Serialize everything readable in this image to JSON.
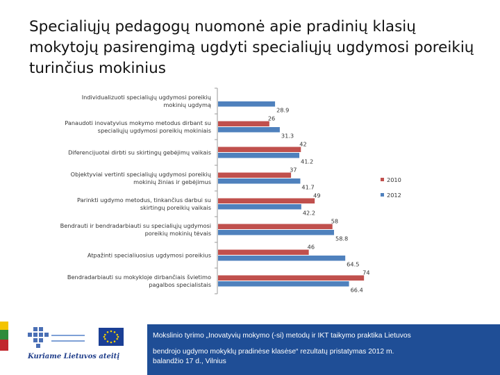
{
  "slide": {
    "title": "Specialiųjų pedagogų nuomonė apie pradinių klasių mokytojų pasirengimą ugdyti specialiųjų ugdymosi poreikių turinčius mokinius",
    "footer": {
      "logo_caption": "Kuriame Lietuvos ateitį",
      "info_line1": "Mokslinio tyrimo „Inovatyvių mokymo (-si) metodų ir IKT taikymo praktika Lietuvos",
      "info_line2": "bendrojo ugdymo mokyklų pradinėse klasėse“ rezultatų pristatymas 2012 m.",
      "info_line3": "balandžio 17 d., Vilnius"
    }
  },
  "chart_data": {
    "type": "bar",
    "orientation": "horizontal",
    "categories": [
      [
        "Individualizuoti specialiųjų ugdymosi poreikių",
        "mokinių ugdymą"
      ],
      [
        "Panaudoti inovatyvius mokymo metodus dirbant su",
        "specialiųjų ugdymosi poreikių mokiniais"
      ],
      [
        "Diferencijuotai dirbti su skirtingų gebėjimų vaikais"
      ],
      [
        "Objektyviai vertinti specialiųjų ugdymosi poreikių",
        "mokinių žinias ir gebėjimus"
      ],
      [
        "Parinkti ugdymo metodus, tinkančius darbui su",
        "skirtingų poreikių vaikais"
      ],
      [
        "Bendrauti ir bendradarbiauti su specialiųjų ugdymosi",
        "poreikių mokinių tėvais"
      ],
      [
        "Atpažinti specialiuosius ugdymosi poreikius"
      ],
      [
        "Bendradarbiauti su mokykloje dirbančiais švietimo",
        "pagalbos specialistais"
      ]
    ],
    "series": [
      {
        "name": "2010",
        "color": "#c0504d",
        "values": [
          null,
          26,
          42,
          37,
          49,
          58,
          46,
          74
        ]
      },
      {
        "name": "2012",
        "color": "#4f81bd",
        "values": [
          28.9,
          31.3,
          41.2,
          41.7,
          42.2,
          58.8,
          64.5,
          66.4
        ]
      }
    ],
    "xlim": [
      0,
      80
    ],
    "legend_position": "right",
    "grid": false
  }
}
